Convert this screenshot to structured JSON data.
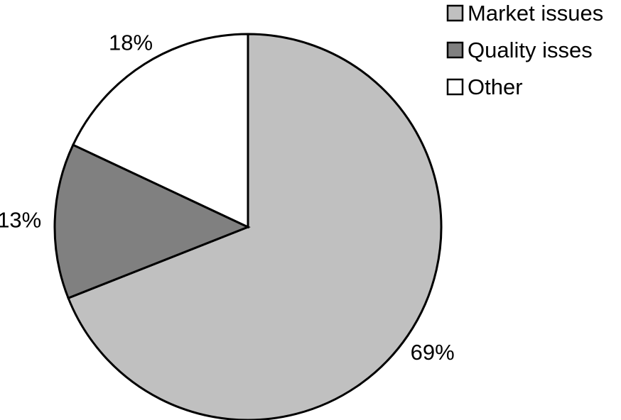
{
  "chart_data": {
    "type": "pie",
    "title": "",
    "start_angle_deg": 90,
    "direction": "clockwise",
    "slices": [
      {
        "label": "Market issues",
        "value": 69,
        "value_label": "69%",
        "color": "#c0c0c0"
      },
      {
        "label": "Quality isses",
        "value": 13,
        "value_label": "13%",
        "color": "#808080"
      },
      {
        "label": "Other",
        "value": 18,
        "value_label": "18%",
        "color": "#ffffff"
      }
    ],
    "legend": {
      "position": "top-right",
      "entries": [
        "Market issues",
        "Quality isses",
        "Other"
      ]
    }
  }
}
